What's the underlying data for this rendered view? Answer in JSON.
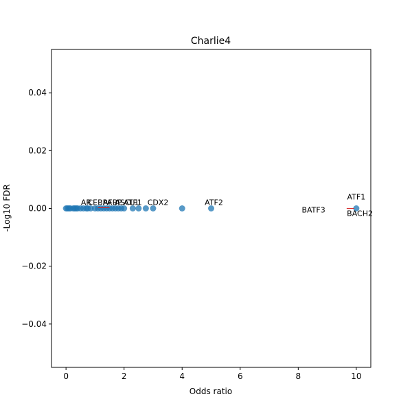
{
  "chart_data": {
    "type": "scatter",
    "title": "Charlie4",
    "xlabel": "Odds ratio",
    "ylabel": "-Log10 FDR",
    "xlim": [
      -0.5,
      10.5
    ],
    "ylim": [
      -0.055,
      0.055
    ],
    "xticks": [
      0,
      2,
      4,
      6,
      8,
      10
    ],
    "xtick_labels": [
      "0",
      "2",
      "4",
      "6",
      "8",
      "10"
    ],
    "yticks": [
      -0.04,
      -0.02,
      0.0,
      0.02,
      0.04
    ],
    "ytick_labels": [
      "−0.04",
      "−0.02",
      "0.00",
      "0.02",
      "0.04"
    ],
    "grid": false,
    "marker_color": "#1f77b4",
    "connector_color": "#d62728",
    "points": [
      {
        "x": 0.0,
        "y": 0
      },
      {
        "x": 0.05,
        "y": 0
      },
      {
        "x": 0.1,
        "y": 0
      },
      {
        "x": 0.15,
        "y": 0
      },
      {
        "x": 0.25,
        "y": 0
      },
      {
        "x": 0.3,
        "y": 0
      },
      {
        "x": 0.35,
        "y": 0
      },
      {
        "x": 0.4,
        "y": 0
      },
      {
        "x": 0.5,
        "y": 0
      },
      {
        "x": 0.6,
        "y": 0
      },
      {
        "x": 0.7,
        "y": 0
      },
      {
        "x": 0.75,
        "y": 0
      },
      {
        "x": 0.85,
        "y": 0
      },
      {
        "x": 1.0,
        "y": 0
      },
      {
        "x": 1.1,
        "y": 0
      },
      {
        "x": 1.2,
        "y": 0
      },
      {
        "x": 1.3,
        "y": 0
      },
      {
        "x": 1.4,
        "y": 0
      },
      {
        "x": 1.5,
        "y": 0
      },
      {
        "x": 1.6,
        "y": 0
      },
      {
        "x": 1.7,
        "y": 0
      },
      {
        "x": 1.8,
        "y": 0
      },
      {
        "x": 1.9,
        "y": 0
      },
      {
        "x": 2.0,
        "y": 0
      },
      {
        "x": 2.3,
        "y": 0
      },
      {
        "x": 2.5,
        "y": 0
      },
      {
        "x": 2.75,
        "y": 0
      },
      {
        "x": 3.0,
        "y": 0
      },
      {
        "x": 4.0,
        "y": 0
      },
      {
        "x": 5.0,
        "y": 0
      },
      {
        "x": 10.0,
        "y": 0
      }
    ],
    "annotations": [
      {
        "text": "AR",
        "x": 0.6,
        "y": 0
      },
      {
        "text": "CEBPA",
        "x": 1.4,
        "y": 0
      },
      {
        "text": "AFBP",
        "x": 1.6,
        "y": 0
      },
      {
        "text": "ASCL1",
        "x": 2.1,
        "y": 0
      },
      {
        "text": "ATF1",
        "x": 2.3,
        "y": 0
      },
      {
        "text": "CDX2",
        "x": 3.5,
        "y": 0
      },
      {
        "text": "ATF2",
        "x": 5.0,
        "y": 0
      },
      {
        "text": "ATF1",
        "x": 10.0,
        "y": 0
      },
      {
        "text": "BATF3",
        "x": 9.0,
        "y": 0
      },
      {
        "text": "BACH2",
        "x": 10.1,
        "y": 0
      }
    ]
  }
}
